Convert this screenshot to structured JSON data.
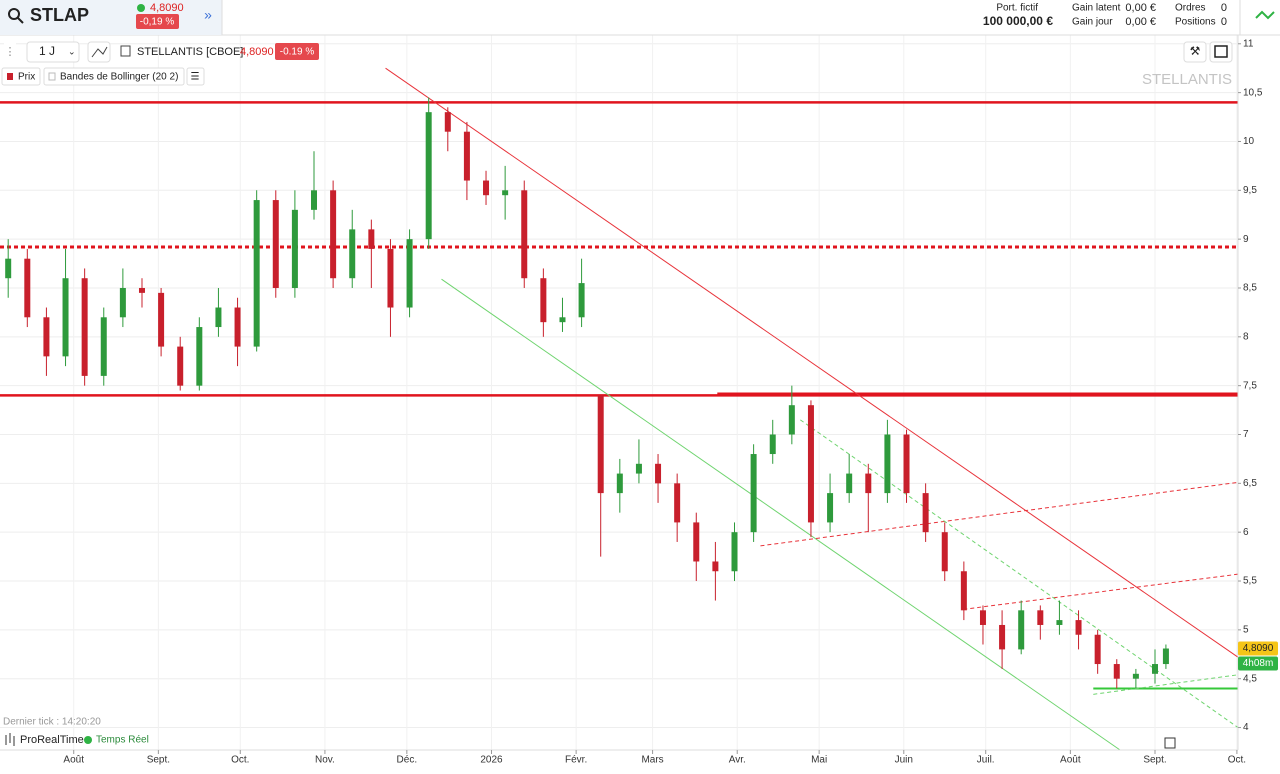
{
  "header": {
    "symbol": "STLAP",
    "price": "4,8090",
    "change": "-0,19 %",
    "portfolio_label": "Port. fictif",
    "portfolio_value": "100 000,00 €",
    "latent_label": "Gain latent",
    "latent_value": "0,00 €",
    "day_label": "Gain jour",
    "day_value": "0,00 €",
    "orders_label": "Ordres",
    "orders_value": "0",
    "positions_label": "Positions",
    "positions_value": "0"
  },
  "toolbar": {
    "interval": "1 J",
    "instrument": "STELLANTIS [CBOE]",
    "price": "4,8090",
    "change": "-0.19 %",
    "legend_price": "Prix",
    "legend_bollinger": "Bandes de Bollinger (20 2)"
  },
  "footer": {
    "last_tick": "Dernier tick : 14:20:20",
    "brand": "ProRealTime",
    "mode": "Temps Réel"
  },
  "chart_data": {
    "type": "candlestick",
    "watermark": "STELLANTIS",
    "xlim": [
      -27,
      426.4
    ],
    "ylim": [
      3.77,
      11.09
    ],
    "grid": true,
    "xticks": [
      {
        "value": 0,
        "label": "Août"
      },
      {
        "value": 31,
        "label": "Sept."
      },
      {
        "value": 61,
        "label": "Oct."
      },
      {
        "value": 92,
        "label": "Nov."
      },
      {
        "value": 122,
        "label": "Déc."
      },
      {
        "value": 153,
        "label": "2026"
      },
      {
        "value": 184,
        "label": "Févr."
      },
      {
        "value": 212,
        "label": "Mars"
      },
      {
        "value": 243,
        "label": "Avr."
      },
      {
        "value": 273,
        "label": "Mai"
      },
      {
        "value": 304,
        "label": "Juin"
      },
      {
        "value": 334,
        "label": "Juil."
      },
      {
        "value": 365,
        "label": "Août"
      },
      {
        "value": 396,
        "label": "Sept."
      },
      {
        "value": 426,
        "label": "Oct."
      }
    ],
    "yticks": [
      11,
      {
        "value": 10.5,
        "label": "10,5"
      },
      10,
      {
        "value": 9.5,
        "label": "9,5"
      },
      9,
      {
        "value": 8.5,
        "label": "8,5"
      },
      8,
      {
        "value": 7.5,
        "label": "7,5"
      },
      7,
      {
        "value": 6.5,
        "label": "6,5"
      },
      6,
      {
        "value": 5.5,
        "label": "5,5"
      },
      5,
      {
        "value": 4.5,
        "label": "4,5"
      },
      4
    ],
    "up_color": "#2e9a3c",
    "down_color": "#c8202c",
    "x": [
      -24,
      -17,
      -10,
      -3,
      4,
      11,
      18,
      25,
      32,
      39,
      46,
      53,
      60,
      67,
      74,
      81,
      88,
      95,
      102,
      109,
      116,
      123,
      130,
      137,
      144,
      151,
      158,
      165,
      172,
      179,
      186,
      193,
      200,
      207,
      214,
      221,
      228,
      235,
      242,
      249,
      256,
      263,
      270,
      277,
      284,
      291,
      298,
      305,
      312,
      319,
      326,
      333,
      340,
      347,
      354,
      361,
      368,
      375,
      382,
      389,
      396,
      400
    ],
    "open": [
      8.6,
      8.8,
      8.2,
      7.8,
      8.6,
      7.6,
      8.2,
      8.5,
      8.45,
      7.9,
      7.5,
      8.1,
      8.3,
      7.9,
      9.4,
      8.5,
      9.3,
      9.5,
      8.6,
      9.1,
      8.9,
      8.3,
      9.0,
      10.3,
      10.1,
      9.6,
      9.45,
      9.5,
      8.6,
      8.15,
      8.2,
      7.4,
      6.4,
      6.6,
      6.7,
      6.5,
      6.1,
      5.7,
      5.6,
      6.0,
      6.8,
      7.0,
      7.3,
      6.1,
      6.4,
      6.6,
      6.4,
      7.0,
      6.4,
      6.0,
      5.6,
      5.2,
      5.05,
      4.8,
      5.2,
      5.05,
      5.1,
      4.95,
      4.65,
      4.5,
      4.55,
      4.65
    ],
    "high": [
      9.0,
      8.9,
      8.3,
      8.9,
      8.7,
      8.3,
      8.7,
      8.6,
      8.5,
      8.0,
      8.2,
      8.5,
      8.4,
      9.5,
      9.5,
      9.5,
      9.9,
      9.6,
      9.3,
      9.2,
      9.0,
      9.1,
      10.45,
      10.35,
      10.2,
      9.7,
      9.75,
      9.6,
      8.7,
      8.4,
      8.8,
      7.4,
      6.75,
      6.95,
      6.8,
      6.6,
      6.2,
      5.9,
      6.1,
      6.9,
      7.15,
      7.5,
      7.35,
      6.6,
      6.8,
      6.7,
      7.15,
      7.05,
      6.5,
      6.1,
      5.7,
      5.25,
      5.2,
      5.3,
      5.25,
      5.3,
      5.2,
      5.0,
      4.7,
      4.6,
      4.8,
      4.85
    ],
    "low": [
      8.4,
      8.1,
      7.6,
      7.7,
      7.5,
      7.5,
      8.1,
      8.3,
      7.8,
      7.45,
      7.45,
      8.0,
      7.7,
      7.85,
      8.4,
      8.4,
      9.2,
      8.5,
      8.5,
      8.5,
      8.0,
      8.2,
      8.9,
      9.9,
      9.4,
      9.35,
      9.2,
      8.5,
      8.0,
      8.05,
      8.1,
      5.75,
      6.2,
      6.5,
      6.3,
      5.9,
      5.5,
      5.3,
      5.5,
      5.9,
      6.7,
      6.9,
      5.95,
      6.0,
      6.3,
      6.0,
      6.3,
      6.3,
      5.9,
      5.5,
      5.1,
      4.85,
      4.6,
      4.75,
      4.9,
      4.95,
      4.8,
      4.55,
      4.4,
      4.4,
      4.45,
      4.6
    ],
    "close": [
      8.8,
      8.2,
      7.8,
      8.6,
      7.6,
      8.2,
      8.5,
      8.45,
      7.9,
      7.5,
      8.1,
      8.3,
      7.9,
      9.4,
      8.5,
      9.3,
      9.5,
      8.6,
      9.1,
      8.9,
      8.3,
      9.0,
      10.3,
      10.1,
      9.6,
      9.45,
      9.5,
      8.6,
      8.15,
      8.2,
      8.55,
      6.4,
      6.6,
      6.7,
      6.5,
      6.1,
      5.7,
      5.6,
      6.0,
      6.8,
      7.0,
      7.3,
      6.1,
      6.4,
      6.6,
      6.4,
      7.0,
      6.4,
      6.0,
      5.6,
      5.2,
      5.05,
      4.8,
      5.2,
      5.05,
      5.1,
      4.95,
      4.65,
      4.5,
      4.55,
      4.65,
      4.809
    ],
    "levels": [
      {
        "y": 10.4,
        "color": "#e0141e",
        "style": "solid"
      },
      {
        "y": 8.92,
        "color": "#e0141e",
        "style": "dotted"
      },
      {
        "y": 7.4,
        "color": "#e0141e",
        "style": "solid"
      }
    ],
    "drawings": [
      {
        "x": [
          235.7,
          426.4
        ],
        "y": [
          7.42,
          7.42
        ],
        "color": "#e0141e",
        "style": "solid"
      },
      {
        "x": [
          373.4,
          426.4
        ],
        "y": [
          4.4,
          4.4
        ],
        "color": "#35c83a",
        "style": "solid"
      },
      {
        "x": [
          114.2,
          426.4
        ],
        "y": [
          10.75,
          4.72
        ],
        "color": "#e8333a",
        "style": "thin"
      },
      {
        "x": [
          134.7,
          383.2
        ],
        "y": [
          8.59,
          3.77
        ],
        "color": "#6fd46f",
        "style": "thin"
      },
      {
        "x": [
          251.5,
          426.4
        ],
        "y": [
          5.86,
          6.51
        ],
        "color": "#e8333a",
        "style": "dashed"
      },
      {
        "x": [
          325.8,
          426.4
        ],
        "y": [
          5.21,
          5.57
        ],
        "color": "#e8333a",
        "style": "dashed"
      },
      {
        "x": [
          266.1,
          426.4
        ],
        "y": [
          7.15,
          4.0
        ],
        "color": "#6fd46f",
        "style": "dashed"
      },
      {
        "x": [
          373.4,
          426.4
        ],
        "y": [
          4.34,
          4.54
        ],
        "color": "#6fd46f",
        "style": "dashed"
      }
    ],
    "price_tag": {
      "value": 4.809,
      "label": "4,8090"
    },
    "timer_tag": "4h08m"
  }
}
